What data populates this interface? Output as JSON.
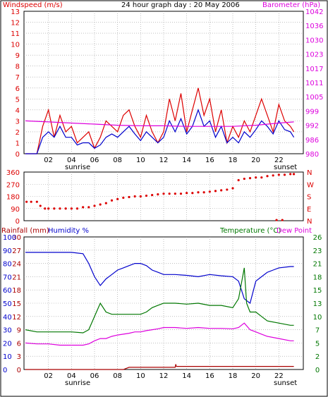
{
  "colors": {
    "red": "#dd0000",
    "blue": "#0000cc",
    "magenta": "#dd00dd",
    "green": "#007700",
    "darkred": "#aa0000",
    "black": "#000000"
  },
  "chart_data": [
    {
      "type": "line",
      "title": "24 hour graph day : 20 May 2006",
      "left_label": "Windspeed (m/s)",
      "right_label": "Barometer (hPa)",
      "ylim": [
        0,
        13
      ],
      "left_ticks": [
        "0",
        "1",
        "2",
        "3",
        "4",
        "5",
        "6",
        "7",
        "8",
        "9",
        "10",
        "11",
        "12",
        "13"
      ],
      "right_ticks": [
        "980",
        "986",
        "992",
        "999",
        "1005",
        "1011",
        "1017",
        "1023",
        "1030",
        "1036",
        "1042"
      ],
      "x_ticks": [
        "02",
        "04",
        "06",
        "08",
        "10",
        "12",
        "14",
        "16",
        "18",
        "20",
        "22"
      ],
      "sunrise_label": "sunrise",
      "sunset_label": "sunset",
      "grid": true,
      "series": [
        {
          "color": "red",
          "x": [
            0,
            1,
            1.5,
            2,
            2.5,
            3,
            3.5,
            4,
            4.5,
            5,
            5.5,
            6,
            6.5,
            7,
            7.5,
            8,
            8.5,
            9,
            9.5,
            10,
            10.5,
            11,
            11.5,
            12,
            12.5,
            13,
            13.5,
            14,
            14.5,
            15,
            15.5,
            16,
            16.5,
            17,
            17.5,
            18,
            18.5,
            19,
            19.5,
            20,
            20.5,
            21,
            21.5,
            22,
            22.5,
            23,
            23.3
          ],
          "values": [
            0,
            0,
            2.5,
            4,
            1.5,
            3.5,
            2,
            2.5,
            1,
            1.5,
            2,
            0.5,
            1.5,
            3,
            2.5,
            2,
            3.5,
            4,
            2.5,
            1.5,
            3.5,
            2,
            1,
            2,
            5,
            3,
            5.5,
            2,
            4,
            6,
            3.5,
            5,
            2,
            4,
            1,
            2.5,
            1.5,
            3,
            2,
            3.5,
            5,
            3.5,
            2,
            4.5,
            3,
            2.5,
            2
          ]
        },
        {
          "color": "blue",
          "x": [
            0,
            1,
            1.5,
            2,
            2.5,
            3,
            3.5,
            4,
            4.5,
            5,
            5.5,
            6,
            6.5,
            7,
            7.5,
            8,
            8.5,
            9,
            9.5,
            10,
            10.5,
            11,
            11.5,
            12,
            12.5,
            13,
            13.5,
            14,
            14.5,
            15,
            15.5,
            16,
            16.5,
            17,
            17.5,
            18,
            18.5,
            19,
            19.5,
            20,
            20.5,
            21,
            21.5,
            22,
            22.5,
            23,
            23.3
          ],
          "values": [
            0,
            0,
            1.5,
            2,
            1.5,
            2.5,
            1.5,
            1.5,
            0.8,
            1,
            1,
            0.5,
            0.8,
            1.5,
            1.8,
            1.5,
            2,
            2.5,
            1.8,
            1.2,
            2,
            1.5,
            1,
            1.5,
            3,
            2,
            3.2,
            1.8,
            2.5,
            4,
            2.5,
            3,
            1.5,
            2.5,
            1,
            1.5,
            1,
            2,
            1.5,
            2.2,
            3,
            2.5,
            1.8,
            3,
            2.2,
            2,
            1.5
          ]
        },
        {
          "color": "magenta",
          "x": [
            0,
            2,
            4,
            6,
            8,
            10,
            12,
            14,
            16,
            18,
            20,
            22,
            23.3
          ],
          "values": [
            3,
            2.9,
            2.8,
            2.7,
            2.6,
            2.55,
            2.55,
            2.5,
            2.5,
            2.5,
            2.6,
            2.8,
            2.9
          ]
        }
      ]
    },
    {
      "type": "scatter",
      "left_ticks": [
        "0",
        "90",
        "180",
        "270",
        "360"
      ],
      "right_ticks": [
        "N",
        "E",
        "S",
        "W",
        "N"
      ],
      "ylim": [
        0,
        360
      ],
      "series": [
        {
          "color": "red",
          "x": [
            0.1,
            0.5,
            1,
            1.3,
            1.7,
            2,
            2.5,
            3,
            3.5,
            4,
            4.5,
            5,
            5.5,
            6,
            6.5,
            7,
            7.5,
            8,
            8.5,
            9,
            9.5,
            10,
            10.5,
            11,
            11.5,
            12,
            12.5,
            13,
            13.5,
            14,
            14.5,
            15,
            15.5,
            16,
            16.5,
            17,
            17.5,
            18,
            18.5,
            19,
            19.5,
            20,
            20.5,
            21,
            21.5,
            22,
            22.5,
            23,
            23.3,
            21.8,
            22.3
          ],
          "values": [
            140,
            140,
            140,
            110,
            90,
            90,
            90,
            90,
            90,
            90,
            90,
            100,
            100,
            110,
            120,
            130,
            150,
            160,
            170,
            175,
            180,
            180,
            185,
            190,
            195,
            200,
            200,
            200,
            200,
            205,
            205,
            210,
            210,
            215,
            220,
            225,
            230,
            240,
            300,
            310,
            315,
            320,
            320,
            330,
            335,
            340,
            340,
            345,
            345,
            5,
            5
          ]
        }
      ]
    },
    {
      "type": "line",
      "left_label_1": "Rainfall (mm)",
      "left_label_2": "Humidity %",
      "right_label_1": "Temperature (°C)",
      "right_label_2": "Dew Point",
      "left_ticks_rain": [
        "0",
        "3",
        "6",
        "9",
        "12",
        "15",
        "18",
        "21",
        "24",
        "27",
        "30"
      ],
      "left_ticks_hum": [
        "0",
        "10",
        "20",
        "30",
        "40",
        "50",
        "60",
        "70",
        "80",
        "90",
        "100"
      ],
      "right_ticks": [
        "0",
        "2",
        "5",
        "7",
        "10",
        "13",
        "15",
        "18",
        "21",
        "23",
        "26"
      ],
      "ylim": [
        0,
        30
      ],
      "x_ticks": [
        "02",
        "04",
        "06",
        "08",
        "10",
        "12",
        "14",
        "16",
        "18",
        "20",
        "22"
      ],
      "sunrise_label": "sunrise",
      "sunset_label": "sunset",
      "grid": true,
      "series": [
        {
          "color": "blue",
          "x": [
            0,
            1,
            2,
            3,
            4,
            5,
            5.5,
            6,
            6.5,
            7,
            7.5,
            8,
            8.5,
            9,
            9.5,
            10,
            10.5,
            11,
            11.5,
            12,
            13,
            14,
            15,
            16,
            17,
            18,
            18.5,
            19,
            19.5,
            20,
            20.5,
            21,
            21.5,
            22,
            23,
            23.3
          ],
          "values": [
            26.5,
            26.5,
            26.5,
            26.5,
            26.5,
            26.2,
            24,
            21,
            19,
            20.5,
            21.5,
            22.5,
            23,
            23.5,
            24,
            24,
            23.5,
            22.5,
            22,
            21.5,
            21.5,
            21.3,
            21,
            21.5,
            21.2,
            21,
            20,
            16,
            15,
            20,
            21,
            22,
            22.5,
            23,
            23.3,
            23.3
          ]
        },
        {
          "color": "green",
          "x": [
            0,
            1,
            2,
            3,
            4,
            5,
            5.5,
            6,
            6.5,
            7,
            7.5,
            8,
            8.5,
            9,
            9.5,
            10,
            10.5,
            11,
            11.5,
            12,
            13,
            14,
            15,
            16,
            17,
            18,
            18.5,
            19,
            19.2,
            19.5,
            20,
            20.5,
            21,
            22,
            23,
            23.3
          ],
          "values": [
            9,
            8.5,
            8.5,
            8.5,
            8.5,
            8.3,
            9,
            12,
            15,
            13,
            12.5,
            12.5,
            12.5,
            12.5,
            12.5,
            12.5,
            13,
            14,
            14.5,
            15,
            15,
            14.8,
            15,
            14.5,
            14.5,
            14,
            16,
            23,
            15,
            13,
            13,
            12,
            11,
            10.5,
            10,
            10
          ]
        },
        {
          "color": "magenta",
          "x": [
            0,
            1,
            2,
            3,
            4,
            5,
            5.5,
            6,
            6.5,
            7,
            7.5,
            8,
            8.5,
            9,
            9.5,
            10,
            10.5,
            11,
            11.5,
            12,
            13,
            14,
            15,
            16,
            17,
            18,
            18.5,
            19,
            19.5,
            20,
            20.5,
            21,
            22,
            23,
            23.3
          ],
          "values": [
            6,
            5.8,
            5.8,
            5.5,
            5.5,
            5.5,
            5.8,
            6.5,
            7,
            7,
            7.5,
            7.8,
            8,
            8.2,
            8.5,
            8.5,
            8.8,
            9,
            9.2,
            9.5,
            9.5,
            9.3,
            9.5,
            9.3,
            9.3,
            9.2,
            9.5,
            10.5,
            9,
            8.5,
            8,
            7.5,
            7,
            6.5,
            6.5
          ]
        },
        {
          "color": "darkred",
          "x": [
            0,
            8.5,
            9,
            11,
            13,
            13.05,
            13.1,
            23.3
          ],
          "values": [
            0,
            0,
            0.5,
            0.5,
            0.5,
            1.2,
            0.7,
            0.7
          ]
        }
      ]
    }
  ]
}
